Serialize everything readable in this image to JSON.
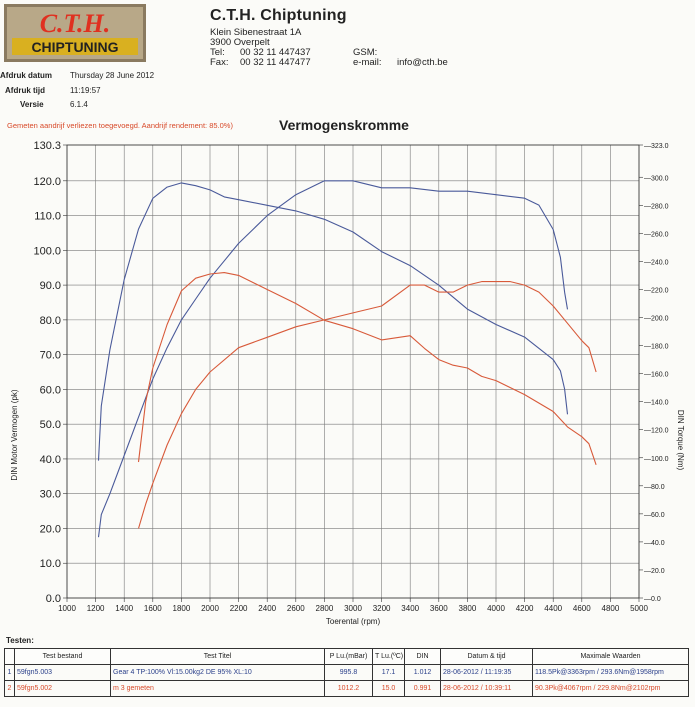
{
  "header": {
    "logo_top": "C.T.H.",
    "logo_bottom": "CHIPTUNING",
    "company": "C.T.H. Chiptuning",
    "street": "Klein Sibenestraat 1A",
    "city": "3900 Overpelt",
    "tel_label": "Tel:",
    "tel": "00 32 11 447437",
    "fax_label": "Fax:",
    "fax": "00 32 11 447477",
    "gsm_label": "GSM:",
    "email_label": "e-mail:",
    "email": "info@cth.be"
  },
  "meta": {
    "print_date_label": "Afdruk datum",
    "print_date": "Thursday 28 June 2012",
    "print_time_label": "Afdruk tijd",
    "print_time": "11:19:57",
    "version_label": "Versie",
    "version": "6.1.4"
  },
  "power_note": "Gemeten aandrijf verliezen toegevoegd. Aandrijf rendement: 85.0%)",
  "chart_data": {
    "type": "line",
    "title": "Vermogenskromme",
    "xlabel": "Toerental (rpm)",
    "ylabel": "DIN Motor Vermogen (pk)",
    "y2label": "DIN Torque (Nm)",
    "xlim": [
      1000,
      5000
    ],
    "ylim": [
      0,
      130.3
    ],
    "y2lim": [
      0,
      323.0
    ],
    "x_ticks": [
      "1000",
      "1200",
      "1400",
      "1600",
      "1800",
      "2000",
      "2200",
      "2400",
      "2600",
      "2800",
      "3000",
      "3200",
      "3400",
      "3600",
      "3800",
      "4000",
      "4200",
      "4400",
      "4600",
      "4800",
      "5000"
    ],
    "y_ticks": [
      "0.0",
      "10.0",
      "20.0",
      "30.0",
      "40.0",
      "50.0",
      "60.0",
      "70.0",
      "80.0",
      "90.0",
      "100.0",
      "110.0",
      "120.0",
      "130.3"
    ],
    "y2_ticks": [
      "0.0",
      "20.0",
      "40.0",
      "60.0",
      "80.0",
      "100.0",
      "120.0",
      "140.0",
      "160.0",
      "180.0",
      "200.0",
      "220.0",
      "240.0",
      "260.0",
      "280.0",
      "300.0",
      "323.0"
    ],
    "grid": true,
    "colors": {
      "tuned": "#4a5a9a",
      "stock": "#d85a3a",
      "grid": "#7a7a7a"
    },
    "series": [
      {
        "axis": "left",
        "color": "#4a5a9a",
        "x": [
          1220,
          1240,
          1300,
          1400,
          1500,
          1600,
          1700,
          1800,
          1900,
          2000,
          2100,
          2200,
          2400,
          2600,
          2800,
          3000,
          3200,
          3400,
          3600,
          3800,
          4000,
          4200,
          4300,
          4400,
          4450,
          4480,
          4500
        ],
        "y": [
          17.5,
          24,
          30,
          41,
          52,
          63,
          72,
          80,
          86,
          92,
          97,
          102,
          110,
          116,
          120,
          120,
          118,
          118,
          117,
          117,
          116,
          115,
          113,
          106,
          98,
          88,
          83
        ]
      },
      {
        "axis": "right",
        "color": "#4a5a9a",
        "x": [
          1220,
          1240,
          1300,
          1400,
          1500,
          1600,
          1700,
          1800,
          1900,
          2000,
          2100,
          2200,
          2400,
          2600,
          2800,
          3000,
          3200,
          3400,
          3600,
          3800,
          4000,
          4200,
          4400,
          4450,
          4480,
          4500
        ],
        "y": [
          98,
          137,
          177,
          227,
          263,
          285,
          293,
          296,
          294,
          291,
          286,
          284,
          280,
          276,
          270,
          261,
          247,
          237,
          223,
          206,
          195,
          186,
          170,
          162,
          149,
          131
        ]
      },
      {
        "axis": "left",
        "color": "#d85a3a",
        "x": [
          1500,
          1550,
          1600,
          1700,
          1800,
          1900,
          2000,
          2200,
          2400,
          2600,
          2800,
          3000,
          3200,
          3400,
          3500,
          3600,
          3700,
          3800,
          3900,
          4000,
          4100,
          4200,
          4300,
          4400,
          4500,
          4600,
          4650,
          4700
        ],
        "y": [
          20,
          27,
          33,
          44,
          53,
          60,
          65,
          72,
          75,
          78,
          80,
          82,
          84,
          90,
          90,
          88,
          88,
          90,
          91,
          91,
          91,
          90,
          88,
          84,
          79,
          74,
          72,
          65
        ]
      },
      {
        "axis": "right",
        "color": "#d85a3a",
        "x": [
          1500,
          1550,
          1600,
          1700,
          1800,
          1900,
          2000,
          2100,
          2200,
          2400,
          2600,
          2800,
          3000,
          3200,
          3400,
          3500,
          3600,
          3700,
          3800,
          3900,
          4000,
          4200,
          4400,
          4500,
          4600,
          4650,
          4700
        ],
        "y": [
          97,
          140,
          164,
          195,
          219,
          228,
          231,
          232,
          230,
          220,
          210,
          198,
          192,
          184,
          187,
          178,
          170,
          166,
          164,
          158,
          155,
          145,
          133,
          122,
          115,
          110,
          95
        ]
      }
    ]
  },
  "tests": {
    "title": "Testen:",
    "columns": [
      "",
      "Test bestand",
      "Test Titel",
      "P Lu.(mBar)",
      "T Lu.(ºC)",
      "DIN",
      "Datum & tijd",
      "Maximale Waarden"
    ],
    "rows": [
      {
        "index": "1",
        "file": "59fgn5.003",
        "title": "Gear 4 TP:100% Vl:15.00kg2 DE 95% XL:10",
        "p": "995.8",
        "t": "17.1",
        "din": "1.012",
        "datetime": "28-06-2012 / 11:19:35",
        "max": "118.5Pk@3363rpm / 293.6Nm@1958rpm"
      },
      {
        "index": "2",
        "file": "59fgn5.002",
        "title": "m 3 gemeten",
        "p": "1012.2",
        "t": "15.0",
        "din": "0.991",
        "datetime": "28-06-2012 / 10:39:11",
        "max": "90.3Pk@4067rpm / 229.8Nm@2102rpm"
      }
    ]
  }
}
